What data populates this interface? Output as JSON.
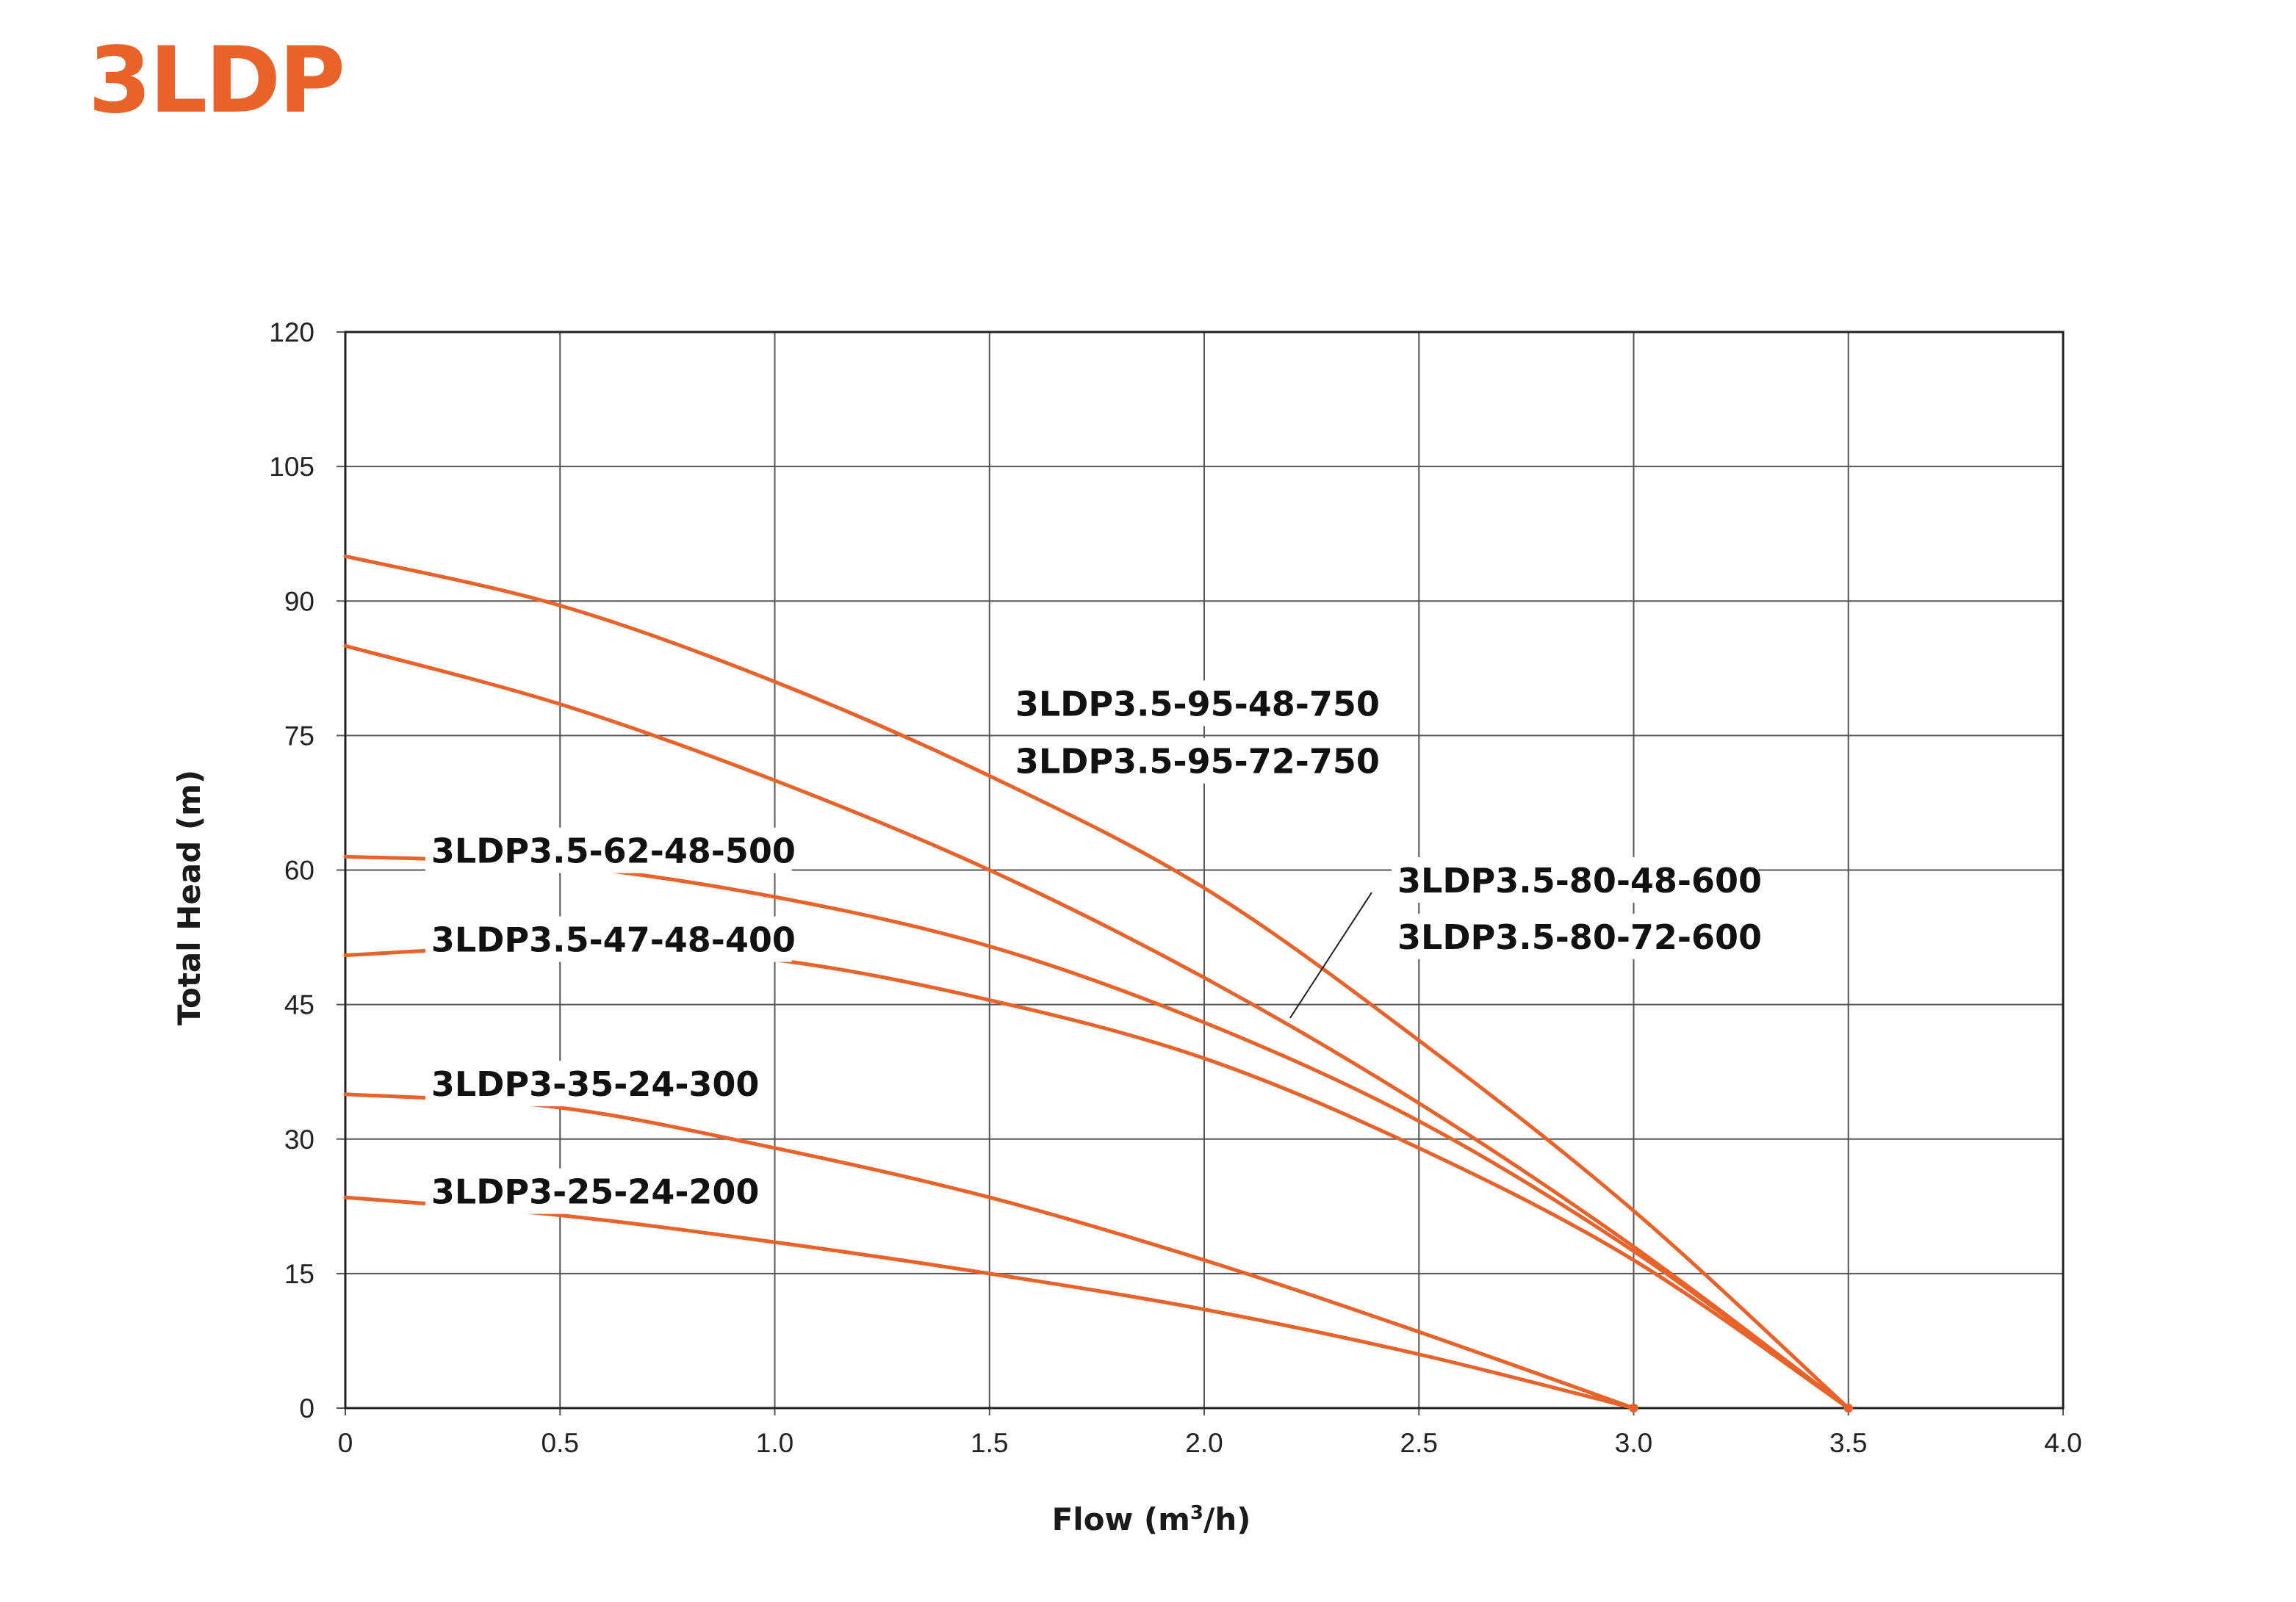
{
  "page": {
    "title": "3LDP"
  },
  "colors": {
    "title": "#e8622a",
    "curve": "#e8622a",
    "grid": "#555555",
    "frame": "#222222"
  },
  "chart_data": {
    "type": "line",
    "title": "",
    "xlabel": "Flow (m3/h)",
    "xlabel_base": "Flow (m",
    "xlabel_sup": "3",
    "xlabel_tail": "/h)",
    "ylabel": "Total Head (m)",
    "xlim": [
      0,
      4
    ],
    "ylim": [
      0,
      120
    ],
    "xticks": [
      0,
      0.5,
      1.0,
      1.5,
      2.0,
      2.5,
      3.0,
      3.5,
      4.0
    ],
    "xtick_labels": [
      "0",
      "0.5",
      "1.0",
      "1.5",
      "2.0",
      "2.5",
      "3.0",
      "3.5",
      "4.0"
    ],
    "yticks": [
      0,
      15,
      30,
      45,
      60,
      75,
      90,
      105,
      120
    ],
    "ytick_labels": [
      "0",
      "15",
      "30",
      "45",
      "60",
      "75",
      "90",
      "105",
      "120"
    ],
    "grid": true,
    "series": [
      {
        "x": [
          0,
          0.5,
          1.0,
          1.5,
          2.0,
          2.5,
          3.0,
          3.5
        ],
        "y": [
          95,
          89.5,
          81,
          70.5,
          58,
          41,
          22,
          0
        ]
      },
      {
        "x": [
          0,
          0.5,
          1.0,
          1.5,
          2.0,
          2.5,
          3.0,
          3.5
        ],
        "y": [
          85,
          78.5,
          70,
          60,
          48,
          34,
          18,
          0
        ]
      },
      {
        "x": [
          0,
          0.5,
          1.0,
          1.5,
          2.0,
          2.5,
          3.0,
          3.5
        ],
        "y": [
          61.5,
          60.5,
          57,
          51.5,
          43,
          32,
          17.5,
          0
        ]
      },
      {
        "x": [
          0,
          0.5,
          1.0,
          1.5,
          2.0,
          2.5,
          3.0,
          3.5
        ],
        "y": [
          50.5,
          51.5,
          50,
          45.5,
          39,
          29,
          16.5,
          0
        ]
      },
      {
        "x": [
          0,
          0.5,
          1.0,
          1.5,
          2.0,
          2.5,
          3.0
        ],
        "y": [
          35,
          33.5,
          29,
          23.5,
          16.5,
          8.5,
          0
        ]
      },
      {
        "x": [
          0,
          0.5,
          1.0,
          1.5,
          2.0,
          2.5,
          3.0
        ],
        "y": [
          23.5,
          21.5,
          18.5,
          15,
          11,
          6,
          0
        ]
      }
    ],
    "annotations": [
      {
        "text": "3LDP3.5-95-48-750",
        "x": 1.56,
        "y": 77.2
      },
      {
        "text": "3LDP3.5-95-72-750",
        "x": 1.56,
        "y": 70.8
      },
      {
        "text": "3LDP3.5-62-48-500",
        "x": 0.2,
        "y": 60.8
      },
      {
        "text": "3LDP3.5-47-48-400",
        "x": 0.2,
        "y": 50.9
      },
      {
        "text": "3LDP3-35-24-300",
        "x": 0.2,
        "y": 34.8
      },
      {
        "text": "3LDP3-25-24-200",
        "x": 0.2,
        "y": 22.8
      },
      {
        "text": "3LDP3.5-80-48-600",
        "x": 2.45,
        "y": 57.5
      },
      {
        "text": "3LDP3.5-80-72-600",
        "x": 2.45,
        "y": 51.2
      }
    ],
    "leader_line": {
      "from": [
        2.39,
        57.5
      ],
      "to": [
        2.2,
        43.5
      ]
    }
  }
}
